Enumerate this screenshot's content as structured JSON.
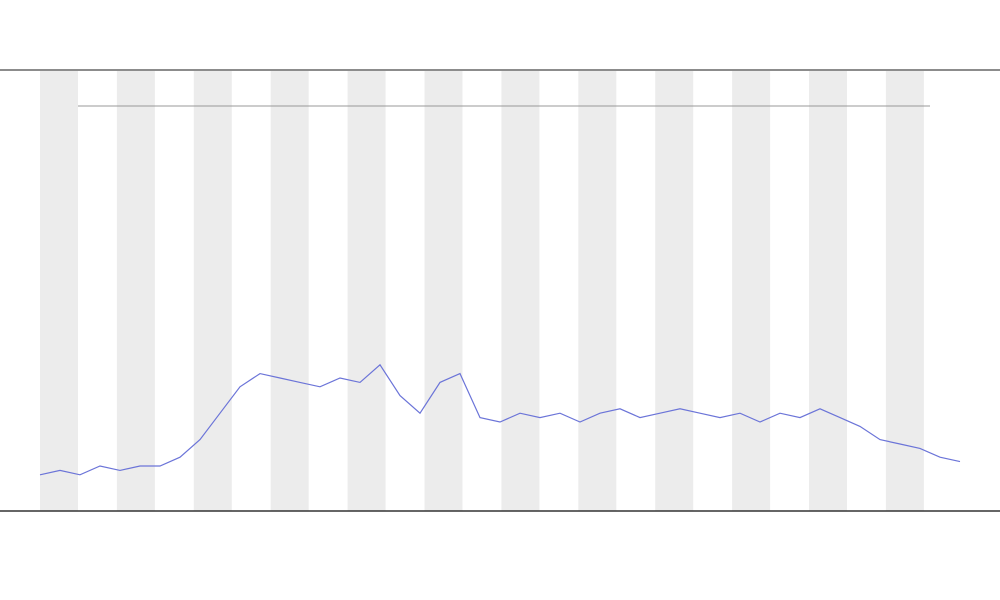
{
  "chart_data": {
    "type": "line",
    "series": [
      {
        "color": "#6b74d8",
        "values": [
          8,
          9,
          8,
          10,
          9,
          10,
          10,
          12,
          16,
          22,
          28,
          31,
          30,
          29,
          28,
          30,
          29,
          33,
          26,
          22,
          29,
          31,
          21,
          20,
          22,
          21,
          22,
          20,
          22,
          23,
          21,
          22,
          23,
          22,
          21,
          22,
          20,
          22,
          21,
          23,
          21,
          19,
          16,
          15,
          14,
          12,
          11
        ]
      }
    ],
    "ylim": [
      0,
      100
    ]
  }
}
